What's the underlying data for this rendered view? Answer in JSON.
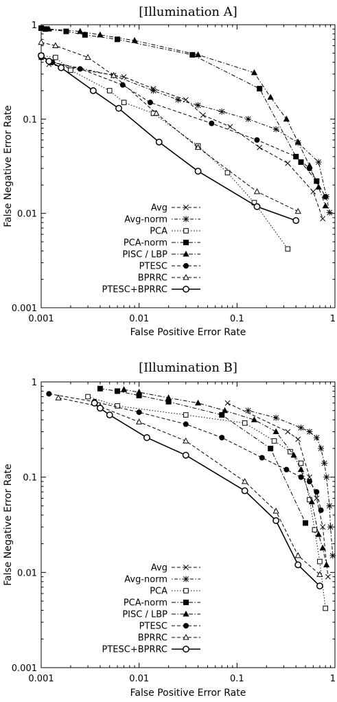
{
  "chart_data": [
    {
      "type": "line",
      "title": "[Illumination A]",
      "xlabel": "False Positive Error Rate",
      "ylabel": "False Negative Error Rate",
      "x_scale": "log",
      "y_scale": "log",
      "xlim": [
        0.001,
        1
      ],
      "ylim": [
        0.001,
        1
      ],
      "x_ticks": [
        "0.001",
        "0.01",
        "0.1",
        "1"
      ],
      "y_ticks": [
        "0.001",
        "0.01",
        "0.1",
        "1"
      ],
      "grid": false,
      "legend_position": "bottom-right",
      "series": [
        {
          "name": "Avg",
          "marker": "x",
          "dash": "dashed",
          "x": [
            0.001,
            0.0012,
            0.007,
            0.014,
            0.03,
            0.045,
            0.085,
            0.17,
            0.33,
            0.6,
            0.75
          ],
          "y": [
            0.45,
            0.38,
            0.28,
            0.21,
            0.16,
            0.11,
            0.083,
            0.05,
            0.034,
            0.017,
            0.0088
          ]
        },
        {
          "name": "Avg-norm",
          "marker": "*",
          "dash": "dotdash",
          "x": [
            0.001,
            0.0013,
            0.0055,
            0.014,
            0.025,
            0.04,
            0.07,
            0.13,
            0.25,
            0.42,
            0.68,
            0.82,
            0.88
          ],
          "y": [
            0.47,
            0.4,
            0.29,
            0.2,
            0.16,
            0.14,
            0.12,
            0.1,
            0.078,
            0.056,
            0.035,
            0.015,
            0.0102
          ]
        },
        {
          "name": "PCA",
          "marker": "open-square",
          "dash": "dotted",
          "x": [
            0.001,
            0.0014,
            0.002,
            0.005,
            0.007,
            0.014,
            0.04,
            0.08,
            0.15,
            0.33
          ],
          "y": [
            0.47,
            0.45,
            0.33,
            0.2,
            0.15,
            0.115,
            0.052,
            0.027,
            0.013,
            0.0042
          ]
        },
        {
          "name": "PCA-norm",
          "marker": "filled-square",
          "dash": "dashdot",
          "x": [
            0.001,
            0.0011,
            0.0018,
            0.0028,
            0.006,
            0.035,
            0.17,
            0.4,
            0.45,
            0.65
          ],
          "y": [
            0.92,
            0.9,
            0.85,
            0.78,
            0.7,
            0.48,
            0.21,
            0.04,
            0.035,
            0.022
          ]
        },
        {
          "name": "PISC / LBP",
          "marker": "filled-triangle",
          "dash": "dashdot",
          "x": [
            0.001,
            0.0012,
            0.0025,
            0.004,
            0.009,
            0.04,
            0.15,
            0.22,
            0.32,
            0.42,
            0.55,
            0.68,
            0.8
          ],
          "y": [
            0.93,
            0.9,
            0.85,
            0.78,
            0.68,
            0.48,
            0.31,
            0.17,
            0.1,
            0.057,
            0.032,
            0.019,
            0.012
          ]
        },
        {
          "name": "PTESC",
          "marker": "filled-circle",
          "dash": "dashed",
          "x": [
            0.001,
            0.0013,
            0.0025,
            0.0068,
            0.013,
            0.055,
            0.16,
            0.4,
            0.55,
            0.8
          ],
          "y": [
            0.45,
            0.4,
            0.34,
            0.23,
            0.15,
            0.09,
            0.06,
            0.04,
            0.03,
            0.015
          ]
        },
        {
          "name": "BPRRC",
          "marker": "open-triangle",
          "dash": "dashed",
          "x": [
            0.001,
            0.0014,
            0.003,
            0.0055,
            0.015,
            0.04,
            0.16,
            0.42
          ],
          "y": [
            0.65,
            0.6,
            0.45,
            0.29,
            0.115,
            0.05,
            0.017,
            0.0105
          ]
        },
        {
          "name": "PTESC+BPRRC",
          "marker": "open-circle",
          "dash": "solid",
          "x": [
            0.001,
            0.0012,
            0.0016,
            0.0034,
            0.0062,
            0.016,
            0.04,
            0.16,
            0.4
          ],
          "y": [
            0.47,
            0.41,
            0.35,
            0.2,
            0.13,
            0.057,
            0.028,
            0.0118,
            0.0084
          ]
        }
      ]
    },
    {
      "type": "line",
      "title": "[Illumination B]",
      "xlabel": "False Positive Error Rate",
      "ylabel": "False Negative Error Rate",
      "x_scale": "log",
      "y_scale": "log",
      "xlim": [
        0.001,
        1
      ],
      "ylim": [
        0.001,
        1
      ],
      "x_ticks": [
        "0.001",
        "0.01",
        "0.1",
        "1"
      ],
      "y_ticks": [
        "0.001",
        "0.01",
        "0.1",
        "1"
      ],
      "grid": false,
      "legend_position": "bottom-right",
      "series": [
        {
          "name": "Avg",
          "marker": "x",
          "dash": "dashed",
          "x": [
            0.08,
            0.33,
            0.42,
            0.55,
            0.65,
            0.75,
            0.85
          ],
          "y": [
            0.6,
            0.3,
            0.25,
            0.1,
            0.06,
            0.03,
            0.009
          ]
        },
        {
          "name": "Avg-norm",
          "marker": "*",
          "dash": "dotdash",
          "x": [
            0.13,
            0.25,
            0.45,
            0.55,
            0.65,
            0.72,
            0.78,
            0.82,
            0.88,
            0.9,
            0.95
          ],
          "y": [
            0.5,
            0.42,
            0.33,
            0.3,
            0.26,
            0.2,
            0.14,
            0.1,
            0.05,
            0.03,
            0.015
          ]
        },
        {
          "name": "PCA",
          "marker": "open-square",
          "dash": "dotted",
          "x": [
            0.003,
            0.006,
            0.03,
            0.12,
            0.24,
            0.35,
            0.45,
            0.55,
            0.62,
            0.7,
            0.8
          ],
          "y": [
            0.7,
            0.56,
            0.45,
            0.37,
            0.24,
            0.185,
            0.14,
            0.058,
            0.028,
            0.013,
            0.0042
          ]
        },
        {
          "name": "PCA-norm",
          "marker": "filled-square",
          "dash": "dashdot",
          "x": [
            0.004,
            0.006,
            0.01,
            0.02,
            0.07,
            0.22,
            0.5
          ],
          "y": [
            0.85,
            0.8,
            0.72,
            0.62,
            0.45,
            0.2,
            0.033
          ]
        },
        {
          "name": "PISC / LBP",
          "marker": "filled-triangle",
          "dash": "dashdot",
          "x": [
            0.007,
            0.01,
            0.02,
            0.04,
            0.075,
            0.15,
            0.25,
            0.38,
            0.45,
            0.58,
            0.68,
            0.75,
            0.82
          ],
          "y": [
            0.83,
            0.78,
            0.68,
            0.6,
            0.5,
            0.4,
            0.3,
            0.17,
            0.12,
            0.055,
            0.025,
            0.018,
            0.012
          ]
        },
        {
          "name": "PTESC",
          "marker": "filled-circle",
          "dash": "dashed",
          "x": [
            0.0012,
            0.0035,
            0.01,
            0.03,
            0.07,
            0.18,
            0.32,
            0.45,
            0.55,
            0.65,
            0.72
          ],
          "y": [
            0.75,
            0.62,
            0.48,
            0.36,
            0.26,
            0.16,
            0.12,
            0.1,
            0.09,
            0.07,
            0.045
          ]
        },
        {
          "name": "BPRRC",
          "marker": "open-triangle",
          "dash": "dashed",
          "x": [
            0.0015,
            0.004,
            0.01,
            0.03,
            0.12,
            0.25,
            0.42,
            0.7
          ],
          "y": [
            0.68,
            0.55,
            0.38,
            0.24,
            0.09,
            0.044,
            0.015,
            0.0095
          ]
        },
        {
          "name": "PTESC+BPRRC",
          "marker": "open-circle",
          "dash": "solid",
          "x": [
            0.0035,
            0.004,
            0.005,
            0.012,
            0.03,
            0.12,
            0.25,
            0.42,
            0.7
          ],
          "y": [
            0.6,
            0.53,
            0.45,
            0.26,
            0.17,
            0.072,
            0.035,
            0.012,
            0.0072
          ]
        }
      ]
    }
  ]
}
